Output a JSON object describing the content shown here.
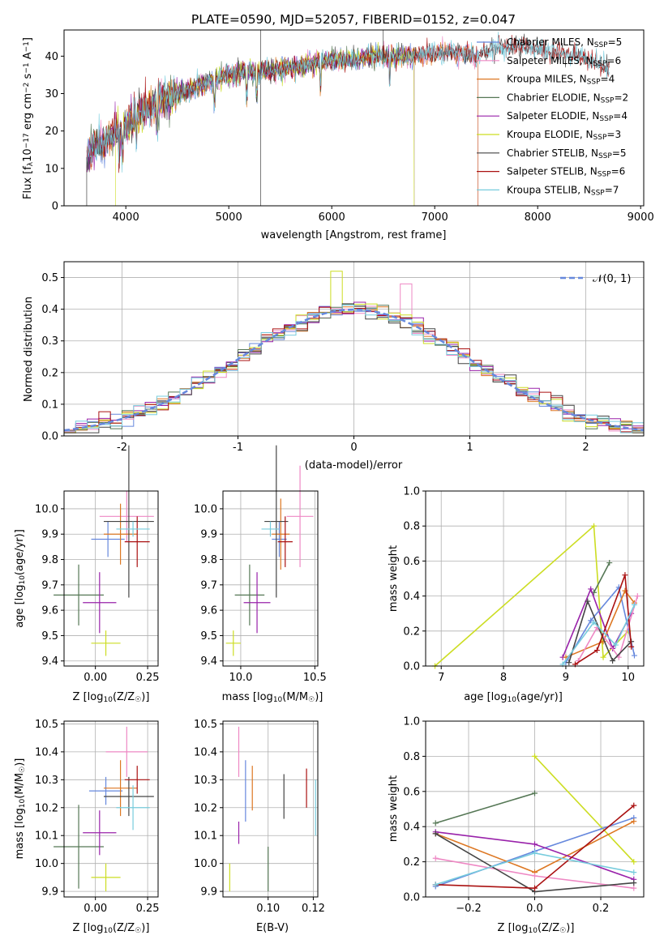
{
  "chart_data": [
    {
      "id": "spectrum",
      "type": "line",
      "title": "PLATE=0590, MJD=52057, FIBERID=0152, z=0.047",
      "xlabel": "wavelength [Angstrom, rest frame]",
      "ylabel": "Flux [f_λ10^-17 erg cm^-2 s^-1 A^-1]",
      "xlim": [
        3400,
        9030
      ],
      "ylim": [
        0,
        47
      ],
      "xticks": [
        4000,
        5000,
        6000,
        7000,
        8000,
        9000
      ],
      "yticks": [
        0,
        10,
        20,
        30,
        40
      ],
      "grid": false,
      "legend_position": "top-right",
      "series": [
        {
          "name": "Chabrier MILES, N_SSP=5",
          "color": "#6688dd",
          "range": [
            3620,
            7420
          ]
        },
        {
          "name": "Salpeter MILES, N_SSP=6",
          "color": "#ee88c4",
          "range": [
            3620,
            7420
          ]
        },
        {
          "name": "Kroupa MILES, N_SSP=4",
          "color": "#dd7722",
          "range": [
            3620,
            7420
          ]
        },
        {
          "name": "Chabrier ELODIE, N_SSP=2",
          "color": "#557755",
          "range": [
            3620,
            6800
          ]
        },
        {
          "name": "Salpeter ELODIE, N_SSP=4",
          "color": "#9922aa",
          "range": [
            3620,
            6800
          ]
        },
        {
          "name": "Kroupa ELODIE, N_SSP=3",
          "color": "#ccdd22",
          "range": [
            3900,
            6800
          ]
        },
        {
          "name": "Chabrier STELIB, N_SSP=5",
          "color": "#444444",
          "range": [
            3620,
            8700
          ]
        },
        {
          "name": "Salpeter STELIB, N_SSP=6",
          "color": "#aa1111",
          "range": [
            3620,
            8700
          ]
        },
        {
          "name": "Kroupa STELIB, N_SSP=7",
          "color": "#77ccdd",
          "range": [
            3620,
            8700
          ]
        }
      ],
      "continuum_wavelength": [
        3620,
        3700,
        3800,
        3900,
        4000,
        4100,
        4200,
        4300,
        4400,
        4500,
        4600,
        4800,
        5000,
        5200,
        5400,
        5600,
        5800,
        6000,
        6200,
        6400,
        6600,
        6800,
        7000,
        7200,
        7400,
        7600,
        7800,
        8000,
        8200,
        8400,
        8600,
        8700
      ],
      "continuum_flux": [
        13,
        16,
        17,
        20,
        21,
        24,
        26,
        28,
        29,
        30,
        31,
        33,
        35,
        36,
        36,
        37,
        38,
        39,
        39,
        40,
        40,
        40,
        41,
        41,
        40,
        42,
        43,
        42,
        41,
        40,
        38,
        37
      ]
    },
    {
      "id": "residuals",
      "type": "line",
      "xlabel": "(data-model)/error",
      "ylabel": "Normed distribution",
      "xlim": [
        -2.5,
        2.5
      ],
      "ylim": [
        0,
        0.55
      ],
      "xticks": [
        -2,
        -1,
        0,
        1,
        2
      ],
      "yticks": [
        0.0,
        0.1,
        0.2,
        0.3,
        0.4,
        0.5
      ],
      "grid": true,
      "legend_position": "top-right",
      "legend": "𝒩(0, 1)",
      "bin_width": 0.1,
      "curve_color": "#6688dd"
    },
    {
      "id": "age-vs-Z",
      "type": "scatter",
      "xlabel": "Z [log10(Z/Z☉)]",
      "ylabel": "age [log10(age/yr)]",
      "xlim": [
        -0.15,
        0.3
      ],
      "ylim": [
        9.38,
        10.07
      ],
      "xticks": [
        0.0,
        0.25
      ],
      "xticklabels": [
        "0.00",
        "0.25"
      ],
      "yticks": [
        9.4,
        9.5,
        9.6,
        9.7,
        9.8,
        9.9,
        10.0
      ],
      "grid": true,
      "errorbars": [
        {
          "color": "#6688dd",
          "x": 0.06,
          "xerr": 0.08,
          "y": 9.88,
          "yerr": 0.07
        },
        {
          "color": "#ee88c4",
          "x": 0.15,
          "xerr": 0.13,
          "y": 9.97,
          "yerr": 0.1
        },
        {
          "color": "#dd7722",
          "x": 0.12,
          "xerr": 0.08,
          "y": 9.9,
          "yerr": 0.12
        },
        {
          "color": "#557755",
          "x": -0.08,
          "xerr": 0.12,
          "y": 9.66,
          "yerr": 0.12
        },
        {
          "color": "#9922aa",
          "x": 0.02,
          "xerr": 0.08,
          "y": 9.63,
          "yerr": 0.12
        },
        {
          "color": "#ccdd22",
          "x": 0.05,
          "xerr": 0.07,
          "y": 9.47,
          "yerr": 0.05
        },
        {
          "color": "#444444",
          "x": 0.16,
          "xerr": 0.12,
          "y": 9.95,
          "yerr": 0.3
        },
        {
          "color": "#aa1111",
          "x": 0.2,
          "xerr": 0.06,
          "y": 9.87,
          "yerr": 0.1
        },
        {
          "color": "#77ccdd",
          "x": 0.18,
          "xerr": 0.08,
          "y": 9.92,
          "yerr": 0.03
        }
      ]
    },
    {
      "id": "age-vs-mass",
      "type": "scatter",
      "xlabel": "mass [log10(M/M☉)]",
      "xlim": [
        9.88,
        10.52
      ],
      "ylim": [
        9.38,
        10.07
      ],
      "xticks": [
        10.0,
        10.5
      ],
      "xticklabels": [
        "10.0",
        "10.5"
      ],
      "yticks": [
        9.4,
        9.5,
        9.6,
        9.7,
        9.8,
        9.9,
        10.0
      ],
      "grid": true,
      "errorbars": [
        {
          "color": "#6688dd",
          "x": 10.26,
          "xerr": 0.05,
          "y": 9.88,
          "yerr": 0.07
        },
        {
          "color": "#ee88c4",
          "x": 10.4,
          "xerr": 0.09,
          "y": 9.97,
          "yerr": 0.2
        },
        {
          "color": "#dd7722",
          "x": 10.27,
          "xerr": 0.06,
          "y": 9.9,
          "yerr": 0.14
        },
        {
          "color": "#557755",
          "x": 10.06,
          "xerr": 0.1,
          "y": 9.66,
          "yerr": 0.12
        },
        {
          "color": "#9922aa",
          "x": 10.11,
          "xerr": 0.09,
          "y": 9.63,
          "yerr": 0.12
        },
        {
          "color": "#ccdd22",
          "x": 9.95,
          "xerr": 0.05,
          "y": 9.47,
          "yerr": 0.05
        },
        {
          "color": "#444444",
          "x": 10.24,
          "xerr": 0.08,
          "y": 9.95,
          "yerr": 0.3
        },
        {
          "color": "#aa1111",
          "x": 10.3,
          "xerr": 0.05,
          "y": 9.87,
          "yerr": 0.1
        },
        {
          "color": "#77ccdd",
          "x": 10.2,
          "xerr": 0.06,
          "y": 9.92,
          "yerr": 0.03
        }
      ]
    },
    {
      "id": "mass-weight-vs-age",
      "type": "line",
      "xlabel": "age [log10(age/yr)]",
      "ylabel": "mass weight",
      "xlim": [
        6.75,
        10.25
      ],
      "ylim": [
        0,
        1.0
      ],
      "xticks": [
        7,
        8,
        9,
        10
      ],
      "yticks": [
        0.0,
        0.2,
        0.4,
        0.6,
        0.8,
        1.0
      ],
      "grid": true,
      "series": [
        {
          "color": "#ccdd22",
          "x": [
            6.9,
            9.45,
            9.6,
            10.0
          ],
          "y": [
            0.0,
            0.8,
            0.05,
            0.2
          ]
        },
        {
          "color": "#557755",
          "x": [
            9.45,
            9.7
          ],
          "y": [
            0.42,
            0.59
          ]
        },
        {
          "color": "#9922aa",
          "x": [
            8.95,
            9.4,
            9.75,
            10.05
          ],
          "y": [
            0.05,
            0.44,
            0.1,
            0.3
          ]
        },
        {
          "color": "#6688dd",
          "x": [
            9.0,
            9.4,
            9.85,
            10.1
          ],
          "y": [
            0.02,
            0.26,
            0.45,
            0.06
          ]
        },
        {
          "color": "#dd7722",
          "x": [
            9.0,
            9.6,
            9.95,
            10.1
          ],
          "y": [
            0.05,
            0.14,
            0.43,
            0.36
          ]
        },
        {
          "color": "#ee88c4",
          "x": [
            9.2,
            9.5,
            9.85,
            10.15
          ],
          "y": [
            0.03,
            0.22,
            0.05,
            0.4
          ]
        },
        {
          "color": "#444444",
          "x": [
            9.05,
            9.35,
            9.75,
            10.05
          ],
          "y": [
            0.02,
            0.37,
            0.03,
            0.14
          ]
        },
        {
          "color": "#aa1111",
          "x": [
            9.15,
            9.5,
            9.95,
            10.05
          ],
          "y": [
            0.01,
            0.09,
            0.52,
            0.11
          ]
        },
        {
          "color": "#77ccdd",
          "x": [
            8.95,
            9.45,
            9.8,
            10.1
          ],
          "y": [
            0.01,
            0.25,
            0.12,
            0.35
          ]
        }
      ]
    },
    {
      "id": "mass-vs-Z",
      "type": "scatter",
      "xlabel": "Z [log10(Z/Z☉)]",
      "ylabel": "mass [log10(M/M☉)]",
      "xlim": [
        -0.15,
        0.3
      ],
      "ylim": [
        9.88,
        10.51
      ],
      "xticks": [
        0.0,
        0.25
      ],
      "xticklabels": [
        "0.00",
        "0.25"
      ],
      "yticks": [
        9.9,
        10.0,
        10.1,
        10.2,
        10.3,
        10.4,
        10.5
      ],
      "grid": true,
      "errorbars": [
        {
          "color": "#6688dd",
          "x": 0.05,
          "xerr": 0.08,
          "y": 10.26,
          "yerr": 0.05
        },
        {
          "color": "#ee88c4",
          "x": 0.15,
          "xerr": 0.1,
          "y": 10.4,
          "yerr": 0.09
        },
        {
          "color": "#dd7722",
          "x": 0.12,
          "xerr": 0.08,
          "y": 10.27,
          "yerr": 0.1
        },
        {
          "color": "#557755",
          "x": -0.08,
          "xerr": 0.12,
          "y": 10.06,
          "yerr": 0.15
        },
        {
          "color": "#9922aa",
          "x": 0.02,
          "xerr": 0.08,
          "y": 10.11,
          "yerr": 0.08
        },
        {
          "color": "#ccdd22",
          "x": 0.05,
          "xerr": 0.07,
          "y": 9.95,
          "yerr": 0.05
        },
        {
          "color": "#444444",
          "x": 0.16,
          "xerr": 0.12,
          "y": 10.24,
          "yerr": 0.07
        },
        {
          "color": "#aa1111",
          "x": 0.2,
          "xerr": 0.06,
          "y": 10.3,
          "yerr": 0.05
        },
        {
          "color": "#77ccdd",
          "x": 0.18,
          "xerr": 0.08,
          "y": 10.2,
          "yerr": 0.08
        }
      ]
    },
    {
      "id": "mass-vs-ebv",
      "type": "scatter",
      "xlabel": "E(B-V)",
      "xlim": [
        0.08,
        0.122
      ],
      "ylim": [
        9.88,
        10.51
      ],
      "xticks": [
        0.1,
        0.12
      ],
      "xticklabels": [
        "0.10",
        "0.12"
      ],
      "yticks": [
        9.9,
        10.0,
        10.1,
        10.2,
        10.3,
        10.4,
        10.5
      ],
      "grid": true,
      "errorbars": [
        {
          "color": "#ccdd22",
          "x": 0.083,
          "xerr": 0,
          "y": 9.95,
          "yerr": 0.05
        },
        {
          "color": "#9922aa",
          "x": 0.087,
          "xerr": 0,
          "y": 10.11,
          "yerr": 0.04
        },
        {
          "color": "#ee88c4",
          "x": 0.087,
          "xerr": 0,
          "y": 10.4,
          "yerr": 0.09
        },
        {
          "color": "#6688dd",
          "x": 0.09,
          "xerr": 0,
          "y": 10.26,
          "yerr": 0.11
        },
        {
          "color": "#dd7722",
          "x": 0.093,
          "xerr": 0,
          "y": 10.27,
          "yerr": 0.08
        },
        {
          "color": "#557755",
          "x": 0.1,
          "xerr": 0,
          "y": 9.98,
          "yerr": 0.08
        },
        {
          "color": "#444444",
          "x": 0.107,
          "xerr": 0,
          "y": 10.24,
          "yerr": 0.08
        },
        {
          "color": "#aa1111",
          "x": 0.117,
          "xerr": 0,
          "y": 10.27,
          "yerr": 0.07
        },
        {
          "color": "#77ccdd",
          "x": 0.121,
          "xerr": 0,
          "y": 10.2,
          "yerr": 0.1
        }
      ]
    },
    {
      "id": "mass-weight-vs-Z",
      "type": "line",
      "xlabel": "Z [log10(Z/Z☉)]",
      "ylabel": "mass weight",
      "xlim": [
        -0.33,
        0.33
      ],
      "ylim": [
        0,
        1.0
      ],
      "xticks": [
        -0.2,
        0.0,
        0.2
      ],
      "xticklabels": [
        "−0.2",
        "0.0",
        "0.2"
      ],
      "yticks": [
        0.0,
        0.2,
        0.4,
        0.6,
        0.8,
        1.0
      ],
      "grid": true,
      "series": [
        {
          "color": "#557755",
          "x": [
            -0.3,
            0.0
          ],
          "y": [
            0.42,
            0.59
          ]
        },
        {
          "color": "#ccdd22",
          "x": [
            0.0,
            0.3
          ],
          "y": [
            0.8,
            0.2
          ]
        },
        {
          "color": "#6688dd",
          "x": [
            -0.3,
            0.0,
            0.3
          ],
          "y": [
            0.06,
            0.26,
            0.45
          ]
        },
        {
          "color": "#dd7722",
          "x": [
            -0.3,
            0.0,
            0.3
          ],
          "y": [
            0.36,
            0.14,
            0.43
          ]
        },
        {
          "color": "#ee88c4",
          "x": [
            -0.3,
            0.0,
            0.3
          ],
          "y": [
            0.22,
            0.12,
            0.05
          ]
        },
        {
          "color": "#9922aa",
          "x": [
            -0.3,
            0.0,
            0.3
          ],
          "y": [
            0.37,
            0.3,
            0.1
          ]
        },
        {
          "color": "#444444",
          "x": [
            -0.3,
            0.0,
            0.3
          ],
          "y": [
            0.36,
            0.03,
            0.08
          ]
        },
        {
          "color": "#aa1111",
          "x": [
            -0.3,
            0.0,
            0.3
          ],
          "y": [
            0.07,
            0.05,
            0.52
          ]
        },
        {
          "color": "#77ccdd",
          "x": [
            -0.3,
            0.0,
            0.3
          ],
          "y": [
            0.07,
            0.25,
            0.14
          ]
        }
      ]
    }
  ]
}
